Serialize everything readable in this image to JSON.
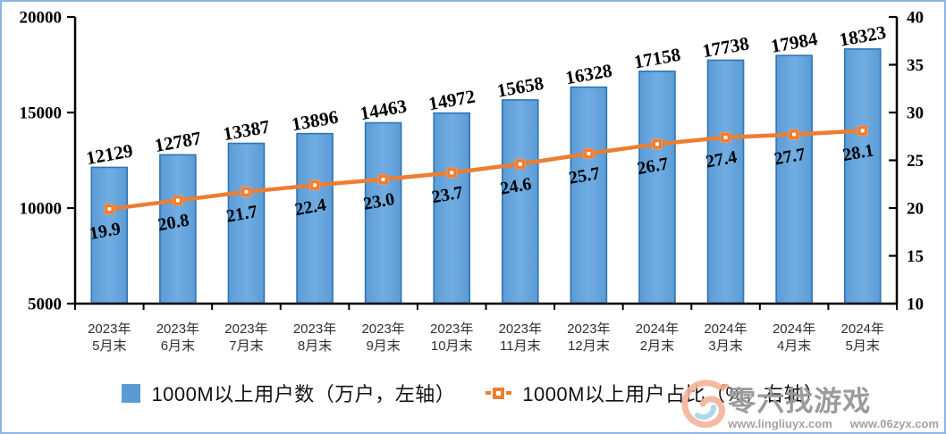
{
  "chart_data": {
    "type": "bar+line",
    "categories": [
      {
        "line1": "2023年",
        "line2": "5月末"
      },
      {
        "line1": "2023年",
        "line2": "6月末"
      },
      {
        "line1": "2023年",
        "line2": "7月末"
      },
      {
        "line1": "2023年",
        "line2": "8月末"
      },
      {
        "line1": "2023年",
        "line2": "9月末"
      },
      {
        "line1": "2023年",
        "line2": "10月末"
      },
      {
        "line1": "2023年",
        "line2": "11月末"
      },
      {
        "line1": "2023年",
        "line2": "12月末"
      },
      {
        "line1": "2024年",
        "line2": "2月末"
      },
      {
        "line1": "2024年",
        "line2": "3月末"
      },
      {
        "line1": "2024年",
        "line2": "4月末"
      },
      {
        "line1": "2024年",
        "line2": "5月末"
      }
    ],
    "series": [
      {
        "name": "1000M以上用户数（万户，左轴）",
        "type": "bar",
        "axis": "left",
        "values": [
          12129,
          12787,
          13387,
          13896,
          14463,
          14972,
          15658,
          16328,
          17158,
          17738,
          17984,
          18323
        ]
      },
      {
        "name": "1000M以上用户占比（%，右轴）",
        "type": "line",
        "axis": "right",
        "values": [
          19.9,
          20.8,
          21.7,
          22.4,
          23.0,
          23.7,
          24.6,
          25.7,
          26.7,
          27.4,
          27.7,
          28.1
        ]
      }
    ],
    "left_axis": {
      "min": 5000,
      "max": 20000,
      "ticks": [
        "20000",
        "15000",
        "10000",
        "5000"
      ]
    },
    "right_axis": {
      "min": 10,
      "max": 40,
      "ticks": [
        "40",
        "35",
        "30",
        "25",
        "20",
        "15",
        "10"
      ]
    },
    "grid": false,
    "legend_position": "bottom",
    "title": ""
  },
  "legend": {
    "bar_label": "1000M以上用户数（万户，左轴）",
    "line_label": "1000M以上用户占比（%，右轴）"
  },
  "watermark": {
    "brand": "零六找游戏",
    "url1": "www.lingliuyx.com",
    "url2": "www.06zyx.com"
  },
  "colors": {
    "bar_fill": "#5B9BD5",
    "bar_fill_light": "#71ADE2",
    "bar_border": "#2E75B6",
    "line": "#ED7D31",
    "axis": "#000000",
    "frame_border": "#8DB4E2",
    "label_text": "#000000",
    "category_text": "#303030"
  }
}
